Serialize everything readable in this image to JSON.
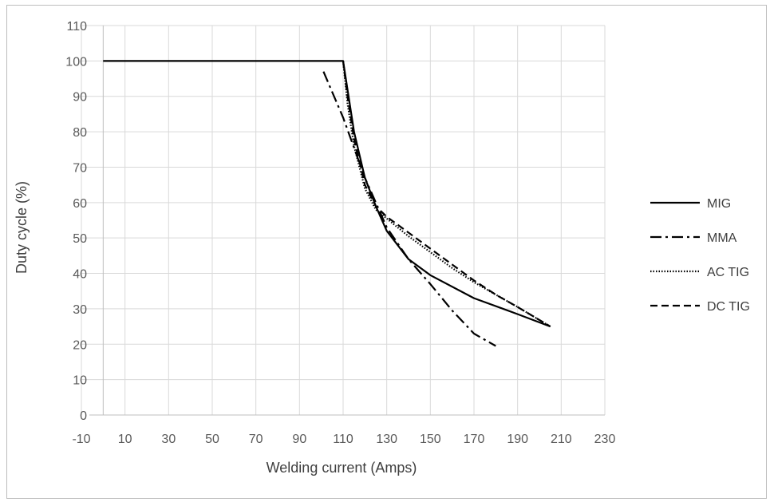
{
  "chart_data": {
    "type": "line",
    "title": "",
    "xlabel": "Welding current  (Amps)",
    "ylabel": "Duty cycle (%)",
    "xlim": [
      -10,
      230
    ],
    "ylim": [
      0,
      110
    ],
    "x_ticks": [
      -10,
      10,
      30,
      50,
      70,
      90,
      110,
      130,
      150,
      170,
      190,
      210,
      230
    ],
    "y_ticks": [
      0,
      10,
      20,
      30,
      40,
      50,
      60,
      70,
      80,
      90,
      100,
      110
    ],
    "grid": true,
    "legend_position": "right",
    "series": [
      {
        "name": "MIG",
        "color": "#000000",
        "dash": "solid",
        "points": [
          [
            0,
            100
          ],
          [
            110,
            100
          ],
          [
            115,
            80
          ],
          [
            120,
            67
          ],
          [
            125,
            59
          ],
          [
            130,
            52
          ],
          [
            140,
            44
          ],
          [
            150,
            39.5
          ],
          [
            170,
            33
          ],
          [
            190,
            28.5
          ],
          [
            205,
            25
          ]
        ]
      },
      {
        "name": "MMA",
        "color": "#000000",
        "dash": "dash-dot",
        "points": [
          [
            101,
            97
          ],
          [
            110,
            84
          ],
          [
            120,
            67
          ],
          [
            125,
            60
          ],
          [
            130,
            53
          ],
          [
            140,
            44
          ],
          [
            150,
            37
          ],
          [
            160,
            29.5
          ],
          [
            170,
            23
          ],
          [
            180,
            19.5
          ]
        ]
      },
      {
        "name": "AC TIG",
        "color": "#000000",
        "dash": "dotted",
        "points": [
          [
            110,
            100
          ],
          [
            112,
            88
          ],
          [
            115,
            76
          ],
          [
            120,
            64
          ],
          [
            125,
            58
          ],
          [
            130,
            55.5
          ],
          [
            140,
            50.5
          ],
          [
            150,
            46
          ],
          [
            160,
            41.5
          ],
          [
            170,
            37.5
          ],
          [
            180,
            34
          ],
          [
            190,
            30.5
          ],
          [
            205,
            25
          ]
        ]
      },
      {
        "name": "DC TIG",
        "color": "#000000",
        "dash": "dashed",
        "points": [
          [
            110,
            100
          ],
          [
            112,
            90
          ],
          [
            115,
            78
          ],
          [
            120,
            65
          ],
          [
            125,
            59
          ],
          [
            130,
            56
          ],
          [
            140,
            51.5
          ],
          [
            150,
            47
          ],
          [
            160,
            42.5
          ],
          [
            170,
            38
          ],
          [
            180,
            34
          ],
          [
            190,
            30.5
          ],
          [
            205,
            25
          ]
        ]
      }
    ]
  }
}
